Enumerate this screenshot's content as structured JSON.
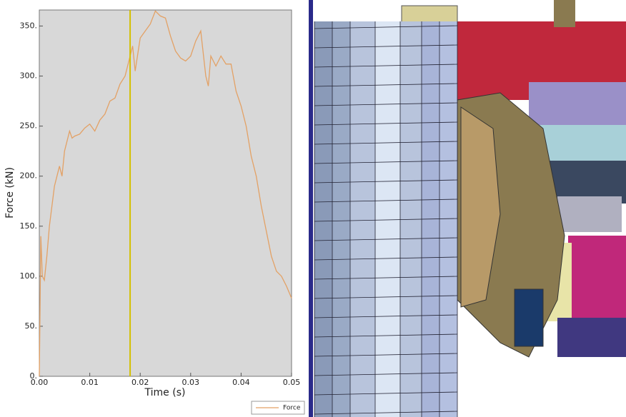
{
  "chart_data": {
    "type": "line",
    "x_label": "Time (s)",
    "y_label": "Force (kN)",
    "x": [
      0,
      0.0003,
      0.0006,
      0.001,
      0.0015,
      0.002,
      0.003,
      0.004,
      0.0045,
      0.005,
      0.006,
      0.0065,
      0.007,
      0.008,
      0.009,
      0.01,
      0.011,
      0.012,
      0.013,
      0.014,
      0.015,
      0.016,
      0.017,
      0.018,
      0.0185,
      0.019,
      0.02,
      0.021,
      0.022,
      0.023,
      0.024,
      0.025,
      0.026,
      0.027,
      0.028,
      0.029,
      0.03,
      0.031,
      0.032,
      0.033,
      0.0335,
      0.034,
      0.035,
      0.036,
      0.037,
      0.038,
      0.039,
      0.04,
      0.041,
      0.042,
      0.043,
      0.044,
      0.045,
      0.046,
      0.047,
      0.048,
      0.049,
      0.05
    ],
    "series": [
      {
        "name": "Force",
        "color": "#e3a165",
        "values": [
          0,
          140,
          100,
          96,
          120,
          150,
          190,
          210,
          200,
          225,
          245,
          238,
          240,
          242,
          248,
          252,
          245,
          256,
          262,
          275,
          278,
          292,
          300,
          320,
          330,
          305,
          338,
          345,
          352,
          365,
          360,
          358,
          340,
          325,
          318,
          315,
          320,
          335,
          345,
          300,
          290,
          320,
          310,
          320,
          312,
          312,
          285,
          270,
          250,
          220,
          200,
          170,
          145,
          120,
          105,
          100,
          90,
          78
        ]
      }
    ],
    "marker_x": 0.018,
    "marker_color": "#d4c000",
    "xlim": [
      0,
      0.05
    ],
    "ylim": [
      0,
      366
    ],
    "xticks": [
      {
        "value": 0,
        "label": "0.00"
      },
      {
        "value": 0.01,
        "label": "0.01"
      },
      {
        "value": 0.02,
        "label": "0.02"
      },
      {
        "value": 0.03,
        "label": "0.03"
      },
      {
        "value": 0.04,
        "label": "0.04"
      },
      {
        "value": 0.05,
        "label": "0.05"
      }
    ],
    "yticks": [
      {
        "value": 0,
        "label": "0."
      },
      {
        "value": 50,
        "label": "50."
      },
      {
        "value": 100,
        "label": "100."
      },
      {
        "value": 150,
        "label": "150."
      },
      {
        "value": 200,
        "label": "200."
      },
      {
        "value": 250,
        "label": "250."
      },
      {
        "value": 300,
        "label": "300."
      },
      {
        "value": 350,
        "label": "350."
      }
    ],
    "legend": "bottom-right"
  }
}
